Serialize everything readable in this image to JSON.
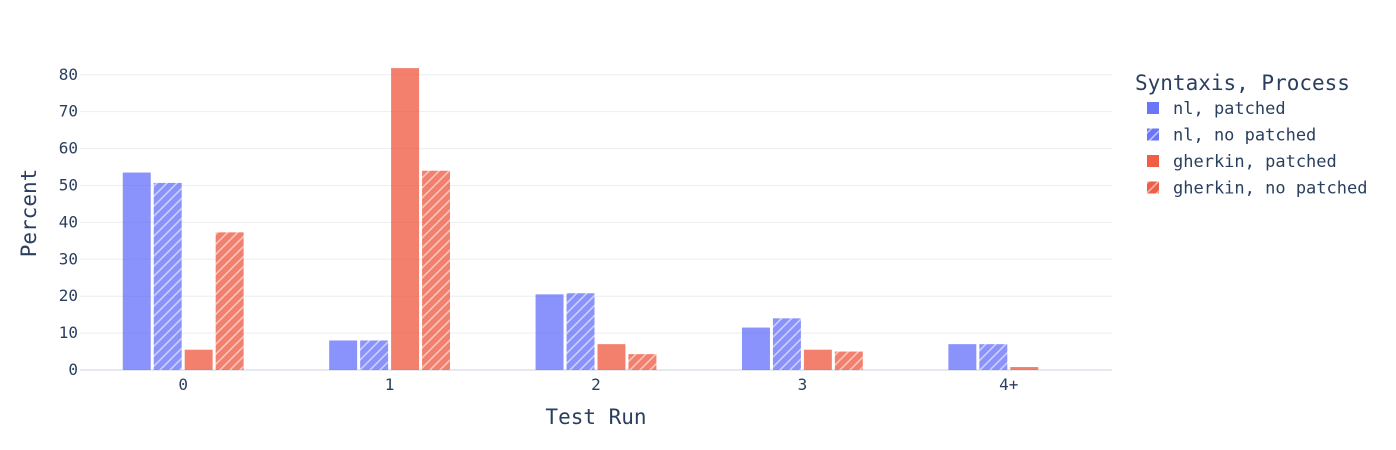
{
  "chart_data": {
    "type": "bar",
    "xlabel": "Test Run",
    "ylabel": "Percent",
    "categories": [
      "0",
      "1",
      "2",
      "3",
      "4+"
    ],
    "ylim": [
      0,
      84
    ],
    "yticks": [
      0,
      10,
      20,
      30,
      40,
      50,
      60,
      70,
      80
    ],
    "grid": true,
    "legend": {
      "title": "Syntaxis, Process",
      "placement": "right"
    },
    "series": [
      {
        "name": "nl, patched",
        "color": "#636efa",
        "pattern": "none",
        "values": [
          53.5,
          8.0,
          20.5,
          11.5,
          7.0
        ]
      },
      {
        "name": "nl, no patched",
        "color": "#636efa",
        "pattern": "diagonal",
        "values": [
          50.7,
          8.0,
          20.8,
          14.0,
          7.0
        ]
      },
      {
        "name": "gherkin, patched",
        "color": "#ef553b",
        "pattern": "none",
        "values": [
          5.5,
          81.8,
          7.0,
          5.5,
          0.8
        ]
      },
      {
        "name": "gherkin, no patched",
        "color": "#ef553b",
        "pattern": "diagonal",
        "values": [
          37.3,
          54.0,
          4.3,
          5.0,
          0
        ]
      }
    ]
  }
}
